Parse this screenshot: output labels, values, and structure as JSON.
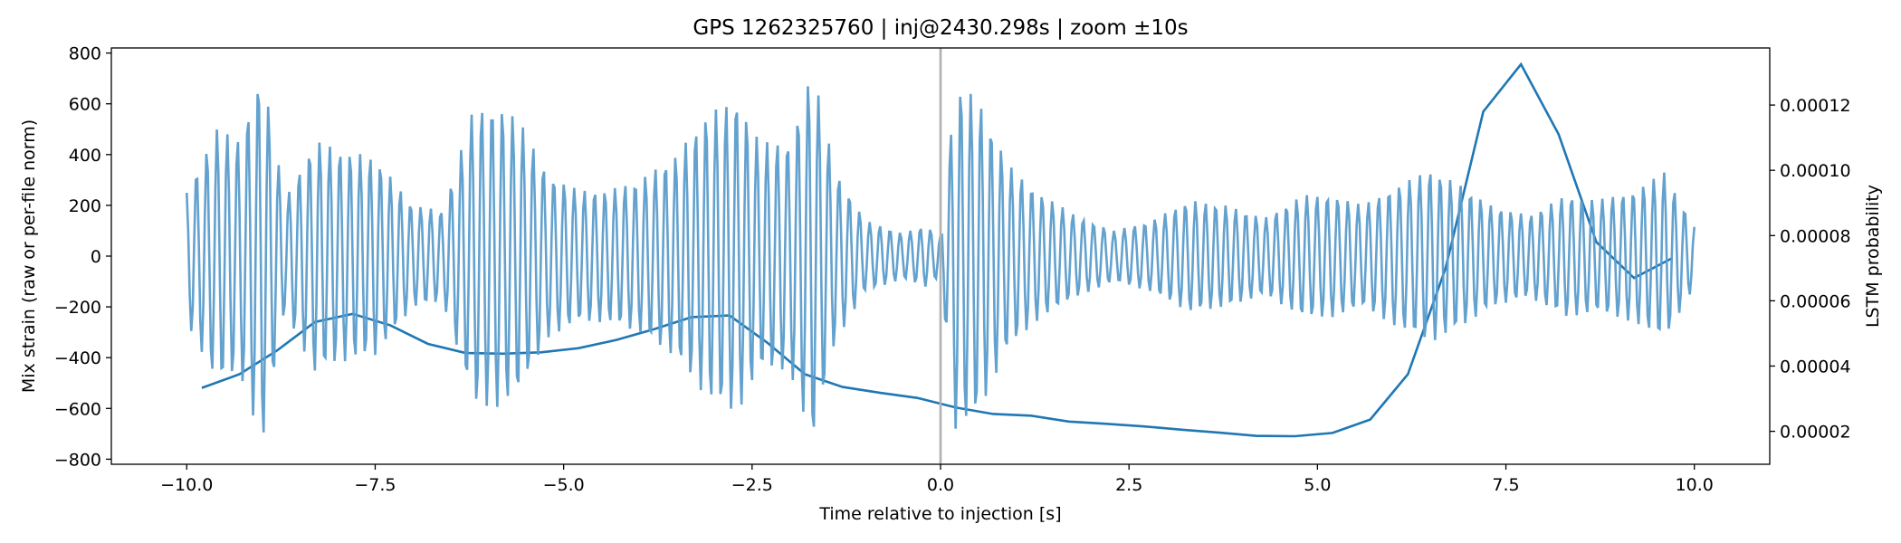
{
  "chart_data": {
    "type": "line",
    "title": "GPS 1262325760 | inj@2430.298s | zoom ±10s",
    "xlabel": "Time relative to injection [s]",
    "ylabel": "Mix strain (raw or per-file norm)",
    "y2label": "LSTM probability",
    "xlim": [
      -11.0,
      11.0
    ],
    "ylim": [
      -820,
      820
    ],
    "y2lim": [
      9.9e-06,
      0.0001375
    ],
    "x_ticks": [
      -10.0,
      -7.5,
      -5.0,
      -2.5,
      0.0,
      2.5,
      5.0,
      7.5,
      10.0
    ],
    "x_tick_labels": [
      "−10.0",
      "−7.5",
      "−5.0",
      "−2.5",
      "0.0",
      "2.5",
      "5.0",
      "7.5",
      "10.0"
    ],
    "y_ticks": [
      -800,
      -600,
      -400,
      -200,
      0,
      200,
      400,
      600,
      800
    ],
    "y_tick_labels": [
      "−800",
      "−600",
      "−400",
      "−200",
      "0",
      "200",
      "400",
      "600",
      "800"
    ],
    "y2_ticks": [
      2e-05,
      4e-05,
      6e-05,
      8e-05,
      0.0001,
      0.00012
    ],
    "y2_tick_labels": [
      "0.00002",
      "0.00004",
      "0.00006",
      "0.00008",
      "0.00010",
      "0.00012"
    ],
    "injection_marker_x": 0.0,
    "strain_series": {
      "name": "Mix strain",
      "color": "#5b9ccb",
      "x_range": [
        -10.0,
        10.0
      ],
      "carrier_frequency_hz": 7.4,
      "sample_step_s": 0.02,
      "envelope": [
        [
          -10.0,
          260
        ],
        [
          -9.6,
          500
        ],
        [
          -9.3,
          460
        ],
        [
          -9.0,
          740
        ],
        [
          -8.7,
          220
        ],
        [
          -8.3,
          460
        ],
        [
          -8.0,
          420
        ],
        [
          -7.5,
          390
        ],
        [
          -7.0,
          200
        ],
        [
          -6.6,
          180
        ],
        [
          -6.2,
          580
        ],
        [
          -5.9,
          600
        ],
        [
          -5.6,
          540
        ],
        [
          -5.2,
          320
        ],
        [
          -4.8,
          260
        ],
        [
          -4.4,
          260
        ],
        [
          -4.0,
          300
        ],
        [
          -3.5,
          400
        ],
        [
          -3.1,
          560
        ],
        [
          -2.7,
          620
        ],
        [
          -2.4,
          450
        ],
        [
          -2.0,
          450
        ],
        [
          -1.7,
          740
        ],
        [
          -1.4,
          340
        ],
        [
          -1.0,
          140
        ],
        [
          -0.5,
          90
        ],
        [
          -0.2,
          120
        ],
        [
          0.0,
          80
        ],
        [
          0.2,
          680
        ],
        [
          0.5,
          620
        ],
        [
          0.9,
          360
        ],
        [
          1.3,
          250
        ],
        [
          1.8,
          160
        ],
        [
          2.3,
          100
        ],
        [
          2.8,
          140
        ],
        [
          3.3,
          220
        ],
        [
          3.8,
          200
        ],
        [
          4.3,
          150
        ],
        [
          4.8,
          240
        ],
        [
          5.2,
          240
        ],
        [
          5.6,
          200
        ],
        [
          6.0,
          270
        ],
        [
          6.5,
          340
        ],
        [
          6.9,
          280
        ],
        [
          7.3,
          200
        ],
        [
          7.8,
          160
        ],
        [
          8.3,
          240
        ],
        [
          8.7,
          220
        ],
        [
          9.2,
          260
        ],
        [
          9.6,
          330
        ],
        [
          10.0,
          120
        ]
      ]
    },
    "lstm_series": {
      "name": "LSTM probability",
      "color": "#1f77b4",
      "x": [
        -9.8,
        -9.3,
        -8.8,
        -8.3,
        -7.8,
        -7.3,
        -6.8,
        -6.3,
        -5.8,
        -5.3,
        -4.8,
        -4.3,
        -3.8,
        -3.3,
        -2.8,
        -2.3,
        -1.8,
        -1.3,
        -0.8,
        -0.3,
        0.2,
        0.7,
        1.2,
        1.7,
        2.2,
        2.7,
        3.2,
        3.7,
        4.2,
        4.7,
        5.2,
        5.7,
        6.2,
        6.7,
        7.2,
        7.7,
        8.2,
        8.7,
        9.2,
        9.7
      ],
      "y": [
        3.33e-05,
        3.75e-05,
        4.48e-05,
        5.35e-05,
        5.6e-05,
        5.25e-05,
        4.68e-05,
        4.4e-05,
        4.38e-05,
        4.42e-05,
        4.55e-05,
        4.8e-05,
        5.13e-05,
        5.5e-05,
        5.55e-05,
        4.72e-05,
        3.75e-05,
        3.36e-05,
        3.18e-05,
        3.02e-05,
        2.73e-05,
        2.53e-05,
        2.48e-05,
        2.3e-05,
        2.23e-05,
        2.15e-05,
        2.05e-05,
        1.96e-05,
        1.86e-05,
        1.85e-05,
        1.95e-05,
        2.36e-05,
        3.75e-05,
        7e-05,
        0.000118,
        0.0001325,
        0.000111,
        7.8e-05,
        6.7e-05,
        7.3e-05
      ]
    }
  }
}
